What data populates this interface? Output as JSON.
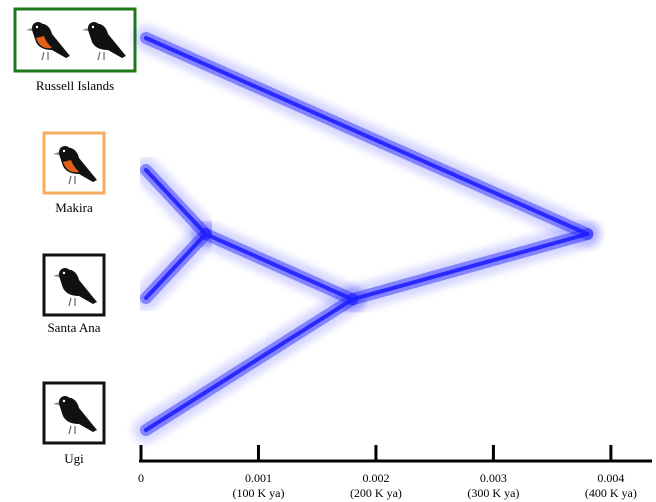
{
  "chart_data": {
    "type": "densitree",
    "taxa": [
      "Russell Islands",
      "Makira",
      "Santa Ana",
      "Ugi"
    ],
    "clades": [
      {
        "members": [
          1,
          2
        ],
        "age": 0.00055
      },
      {
        "members": [
          1,
          2,
          3
        ],
        "age": 0.0018
      },
      {
        "members": [
          0,
          1,
          2,
          3
        ],
        "age": 0.0038
      }
    ],
    "color": "#1f1fff",
    "xlim": [
      0,
      0.00435
    ],
    "xticks": [
      0,
      0.001,
      0.002,
      0.003,
      0.004
    ],
    "xtick_sublabels": [
      null,
      "(100 K ya)",
      "(200 K ya)",
      "(300 K ya)",
      "(400 K ya)"
    ]
  }
}
